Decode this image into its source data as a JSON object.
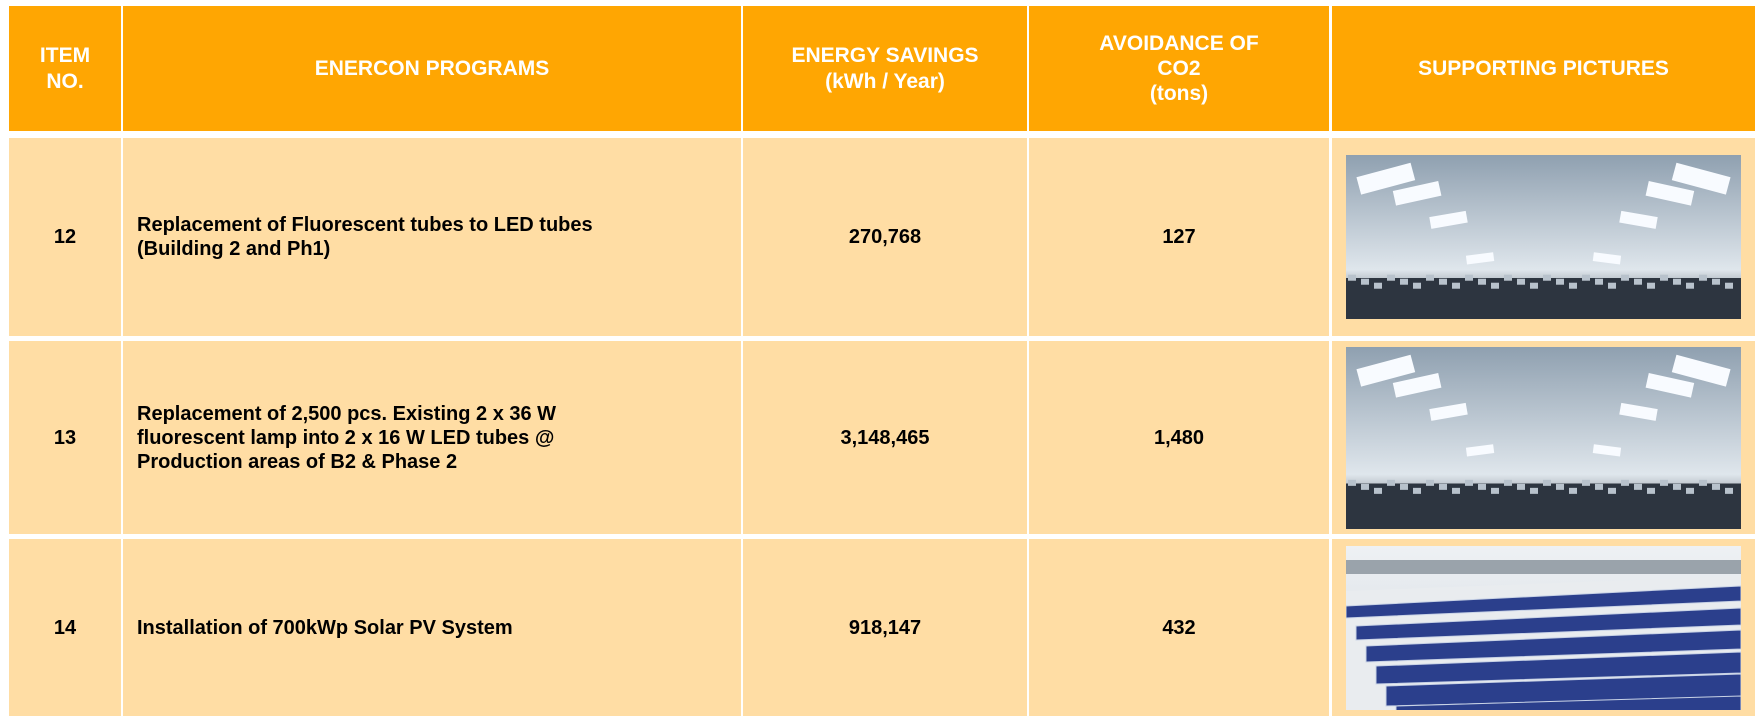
{
  "table": {
    "header": [
      "ITEM\nNO.",
      "ENERCON PROGRAMS",
      "ENERGY SAVINGS\n(kWh / Year)",
      "AVOIDANCE OF\nCO2\n(tons)",
      "SUPPORTING PICTURES"
    ],
    "rows": [
      [
        "12",
        "Replacement of Fluorescent tubes to LED tubes\n(Building 2 and Ph1)",
        "270,768",
        "127"
      ],
      [
        "13",
        "Replacement of 2,500 pcs. Existing 2 x 36 W\nfluorescent lamp into 2 x 16 W LED tubes @\nProduction areas of B2 & Phase 2",
        "3,148,465",
        "1,480"
      ],
      [
        "14",
        "Installation of 700kWp Solar PV System",
        "918,147",
        "432"
      ]
    ]
  }
}
